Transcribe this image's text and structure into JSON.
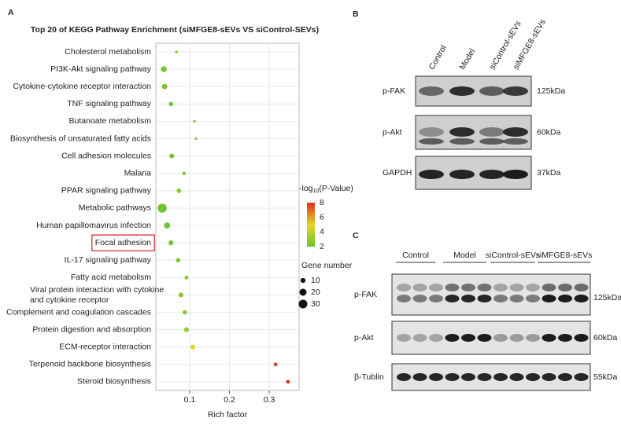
{
  "chart_data": {
    "type": "scatter",
    "title": "Top 20 of KEGG Pathway Enrichment (siMFGE8-sEVs VS siControl-SEVs)",
    "x_label": "Rich factor",
    "categories": [
      "Cholesterol metabolism",
      "PI3K-Akt signaling pathway",
      "Cytokine-cytokine receptor interaction",
      "TNF signaling pathway",
      "Butanoate metabolism",
      "Biosynthesis of unsaturated fatty acids",
      "Cell adhesion molecules",
      "Malaria",
      "PPAR signaling pathway",
      "Metabolic pathways",
      "Human papillomavirus infection",
      "Focal adhesion",
      "IL-17 signaling pathway",
      "Fatty acid metabolism",
      "Viral protein interaction with cytokine and cytokine receptor",
      "Complement and coagulation cascades",
      "Protein digestion and absorption",
      "ECM-receptor interaction",
      "Terpenoid backbone biosynthesis",
      "Steroid biosynthesis"
    ],
    "x": [
      0.067,
      0.035,
      0.037,
      0.053,
      0.112,
      0.116,
      0.055,
      0.086,
      0.073,
      0.031,
      0.043,
      0.053,
      0.071,
      0.092,
      0.078,
      0.088,
      0.092,
      0.108,
      0.316,
      0.347
    ],
    "sizes": [
      3,
      14,
      12,
      8,
      3,
      3,
      9,
      5,
      8,
      33,
      15,
      10,
      8,
      6,
      9,
      8,
      10,
      10,
      6,
      6
    ],
    "color_values": [
      2.5,
      2.3,
      2.3,
      2.2,
      2.8,
      2.8,
      2.2,
      2.6,
      2.6,
      2.1,
      2.2,
      2.3,
      2.5,
      2.8,
      2.6,
      2.8,
      3.2,
      4.8,
      7.6,
      8.0
    ],
    "xlim": [
      0.015,
      0.375
    ],
    "xticks": [
      0.1,
      0.2,
      0.3
    ],
    "grid": true,
    "color_label": [
      "-log",
      "10",
      "(P-Value)"
    ],
    "clim": [
      2,
      8
    ],
    "cticks": [
      2,
      4,
      6,
      8
    ],
    "colorscale": [
      "#6cc233",
      "#e6d52c",
      "#e0301e"
    ],
    "size_label": "Gene number",
    "size_ticks": [
      10,
      20,
      30
    ],
    "highlight": "Focal adhesion"
  },
  "panels": {
    "a": "A",
    "b": "B",
    "c": "C"
  },
  "blot_b": {
    "lanes": [
      "Control",
      "Model",
      "siControl-sEVs",
      "siMFGE8-sEVs"
    ],
    "rows": [
      {
        "name": "p-FAK",
        "size": "125kDa"
      },
      {
        "name": "p-Akt",
        "size": "60kDa"
      },
      {
        "name": "GAPDH",
        "size": "37kDa"
      }
    ]
  },
  "blot_c": {
    "groups": [
      "Control",
      "Model",
      "siControl-sEVs",
      "siMFGE8-sEVs"
    ],
    "rows": [
      {
        "name": "p-FAK",
        "size": "125kDa"
      },
      {
        "name": "p-Akt",
        "size": "60kDa"
      },
      {
        "name": "β-Tublin",
        "size": "55kDa"
      }
    ]
  }
}
